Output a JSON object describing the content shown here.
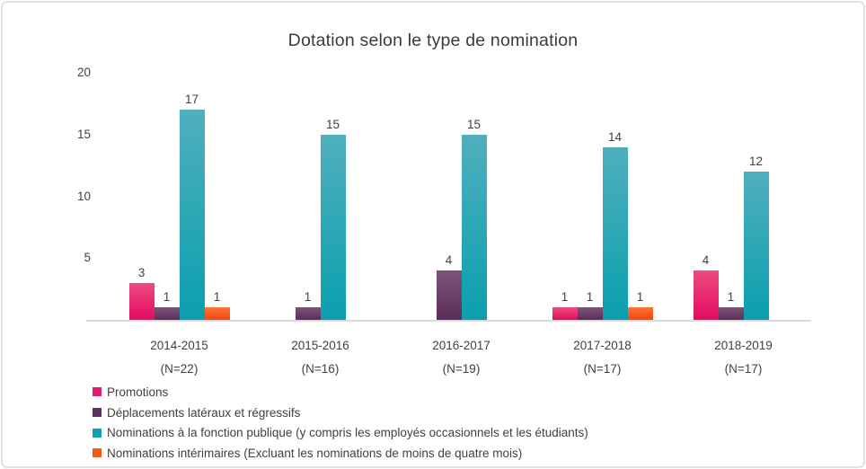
{
  "window": {
    "background": "#ffffff",
    "border_color": "#e2e2e5"
  },
  "chart_data": {
    "type": "bar",
    "title": "Dotation selon le type de nomination",
    "categories": [
      "2014-2015",
      "2015-2016",
      "2016-2017",
      "2017-2018",
      "2018-2019"
    ],
    "category_sublabels": [
      "(N=22)",
      "(N=16)",
      "(N=19)",
      "(N=17)",
      "(N=17)"
    ],
    "series": [
      {
        "name": "Promotions",
        "color": "#e01a6d",
        "gradient_top": "#ee4a81",
        "gradient_bottom": "#e20c60",
        "values": [
          3,
          0,
          0,
          1,
          4
        ]
      },
      {
        "name": "Déplacements latéraux et régressifs",
        "color": "#5e3260",
        "gradient_top": "#7c5478",
        "gradient_bottom": "#5b2d59",
        "values": [
          1,
          1,
          4,
          1,
          1
        ]
      },
      {
        "name": "Nominations à la fonction publique (y compris les employés occasionnels et les étudiants)",
        "color": "#0da2b2",
        "gradient_top": "#4fafbd",
        "gradient_bottom": "#0a9fae",
        "values": [
          17,
          15,
          15,
          14,
          12
        ]
      },
      {
        "name": "Nominations intérimaires (Excluant les nominations de moins de quatre mois)",
        "color": "#f85a15",
        "gradient_top": "#ff7434",
        "gradient_bottom": "#f2470e",
        "values": [
          1,
          0,
          0,
          1,
          0
        ]
      }
    ],
    "ylim": [
      0,
      20
    ],
    "yticks": [
      5,
      10,
      15,
      20
    ],
    "grid": false,
    "legend_position": "bottom-left",
    "axis_color": "#d9d9d9",
    "text_color": "#404040",
    "xlabel": "",
    "ylabel": ""
  }
}
